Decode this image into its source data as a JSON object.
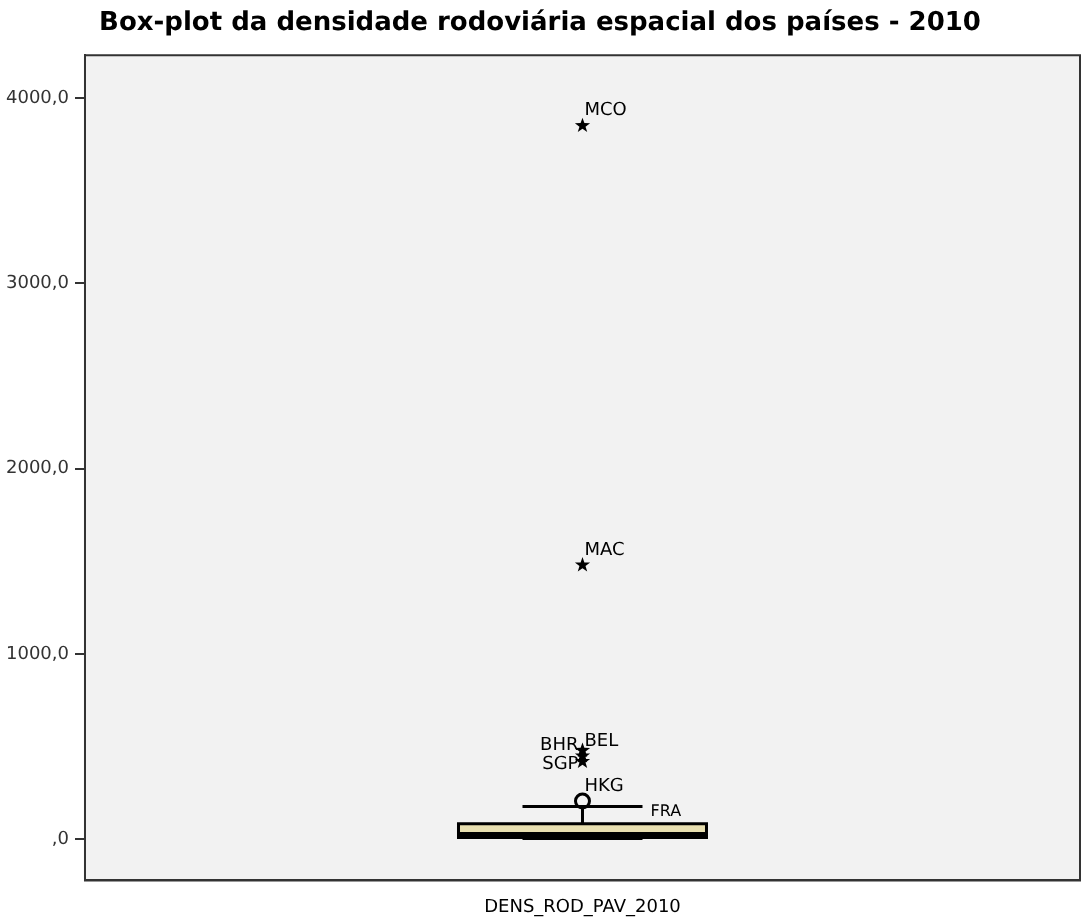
{
  "chart_data": {
    "type": "box",
    "title": "Box-plot da densidade rodoviária espacial dos países - 2010",
    "categories": [
      "DENS_ROD_PAV_2010"
    ],
    "ylim": [
      -221,
      4230
    ],
    "yticks": [
      {
        "value": 0,
        "label": ",0"
      },
      {
        "value": 1000,
        "label": "1000,0"
      },
      {
        "value": 2000,
        "label": "2000,0"
      },
      {
        "value": 3000,
        "label": "3000,0"
      },
      {
        "value": 4000,
        "label": "4000,0"
      }
    ],
    "grid": false,
    "legend": false,
    "series": [
      {
        "color": "#e8dfb0",
        "boxes": [
          {
            "low": 5,
            "q1": 11,
            "median": 26,
            "q3": 84,
            "high": 178,
            "outliers": [
              207
            ]
          }
        ]
      },
      {
        "type": "scatter",
        "marker": "star",
        "color": "#000000",
        "x": [
          "DENS_ROD_PAV_2010",
          "DENS_ROD_PAV_2010",
          "DENS_ROD_PAV_2010",
          "DENS_ROD_PAV_2010",
          "DENS_ROD_PAV_2010"
        ],
        "values": [
          420,
          450,
          480,
          1480,
          3850
        ]
      }
    ],
    "annotations": [
      {
        "text": "MCO",
        "x": "DENS_ROD_PAV_2010",
        "y": 3850
      },
      {
        "text": "MAC",
        "x": "DENS_ROD_PAV_2010",
        "y": 1480
      },
      {
        "text": "BEL",
        "x": "DENS_ROD_PAV_2010",
        "y": 450
      },
      {
        "text": "BHR",
        "x": "DENS_ROD_PAV_2010",
        "y": 480
      },
      {
        "text": "SGP",
        "x": "DENS_ROD_PAV_2010",
        "y": 420
      },
      {
        "text": "HKG",
        "x": "DENS_ROD_PAV_2010",
        "y": 207
      },
      "FRA"
    ]
  }
}
